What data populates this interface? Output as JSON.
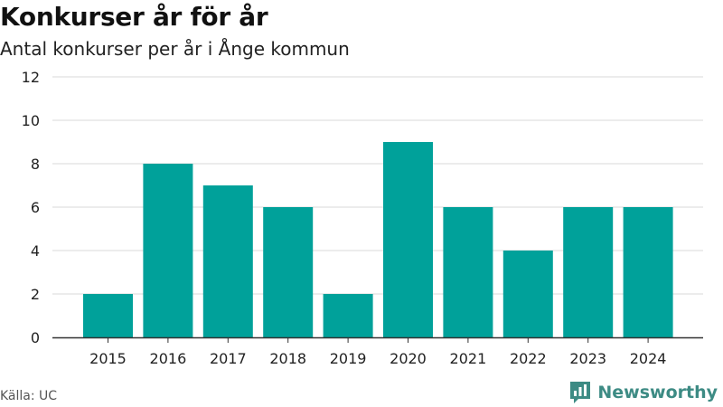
{
  "chart_data": {
    "type": "bar",
    "title": "Konkurser år för år",
    "subtitle": "Antal konkurser per år i Ånge kommun",
    "categories": [
      "2015",
      "2016",
      "2017",
      "2018",
      "2019",
      "2020",
      "2021",
      "2022",
      "2023",
      "2024"
    ],
    "values": [
      2,
      8,
      7,
      6,
      2,
      9,
      6,
      4,
      6,
      6
    ],
    "ylim": [
      0,
      12
    ],
    "yticks": [
      "0",
      "2",
      "4",
      "6",
      "8",
      "10",
      "12"
    ],
    "grid": true,
    "bar_color": "#00a19a",
    "grid_color": "#d9d9d9",
    "axis_color": "#333333"
  },
  "footer": {
    "source": "Källa: UC",
    "brand": "Newsworthy",
    "brand_color": "#3d8b84"
  }
}
